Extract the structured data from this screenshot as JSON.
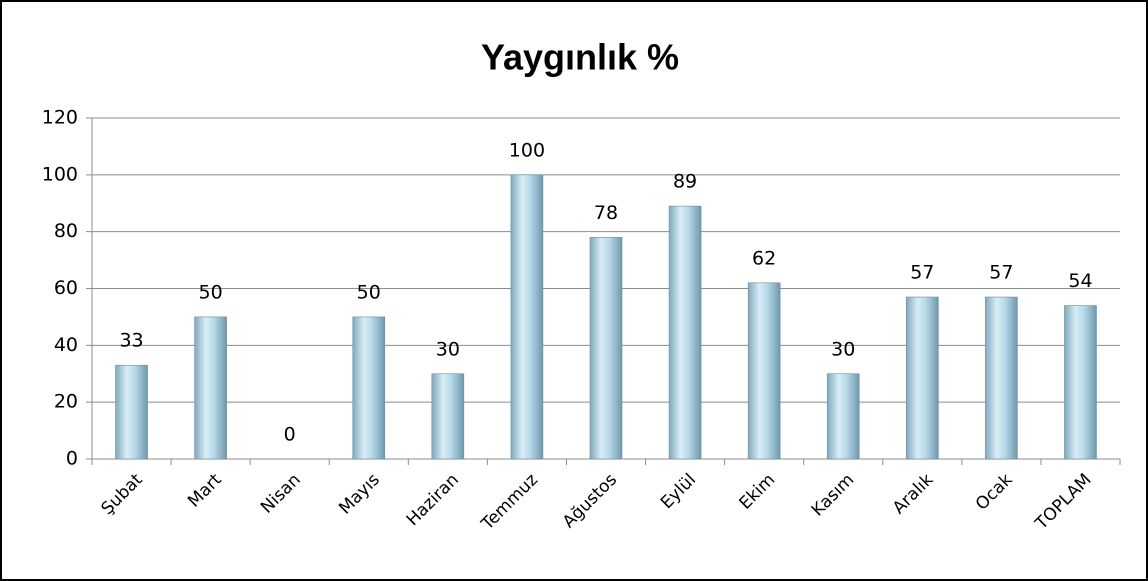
{
  "chart_data": {
    "type": "bar",
    "title": "Yaygınlık %",
    "categories": [
      "Şubat",
      "Mart",
      "Nisan",
      "Mayıs",
      "Haziran",
      "Temmuz",
      "Ağustos",
      "Eylül",
      "Ekim",
      "Kasım",
      "Aralık",
      "Ocak",
      "TOPLAM"
    ],
    "values": [
      33,
      50,
      0,
      50,
      30,
      100,
      78,
      89,
      62,
      30,
      57,
      57,
      54
    ],
    "color": "#a9cfe0",
    "ylim": [
      0,
      120
    ],
    "yticks": [
      0,
      20,
      40,
      60,
      80,
      100,
      120
    ],
    "grid": true
  }
}
